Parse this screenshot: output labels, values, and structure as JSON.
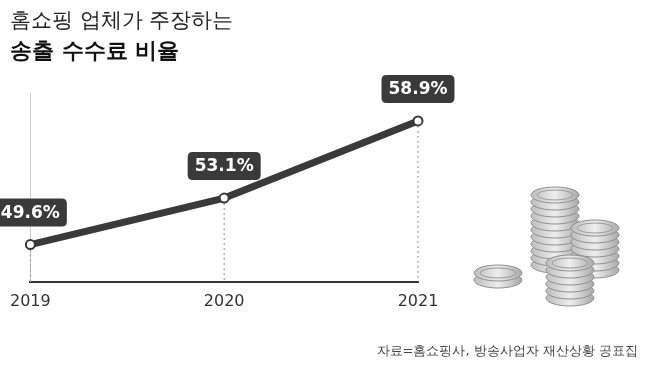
{
  "chart_data": {
    "type": "line",
    "subtitle": "홈쇼핑 업체가 주장하는",
    "title": "송출 수수료 비율",
    "source": "자료=홈쇼핑사, 방송사업자 재산상황 공표집",
    "categories": [
      "2019",
      "2020",
      "2021"
    ],
    "values": [
      49.6,
      53.1,
      58.9
    ],
    "value_labels": [
      "49.6%",
      "53.1%",
      "58.9%"
    ],
    "data_labels": true,
    "color": "#3a3a3a",
    "marker": "circle",
    "line_style": "solid",
    "ylim": [
      46.8,
      61
    ],
    "tick_labels": "x",
    "grid": false,
    "legend": "none"
  }
}
